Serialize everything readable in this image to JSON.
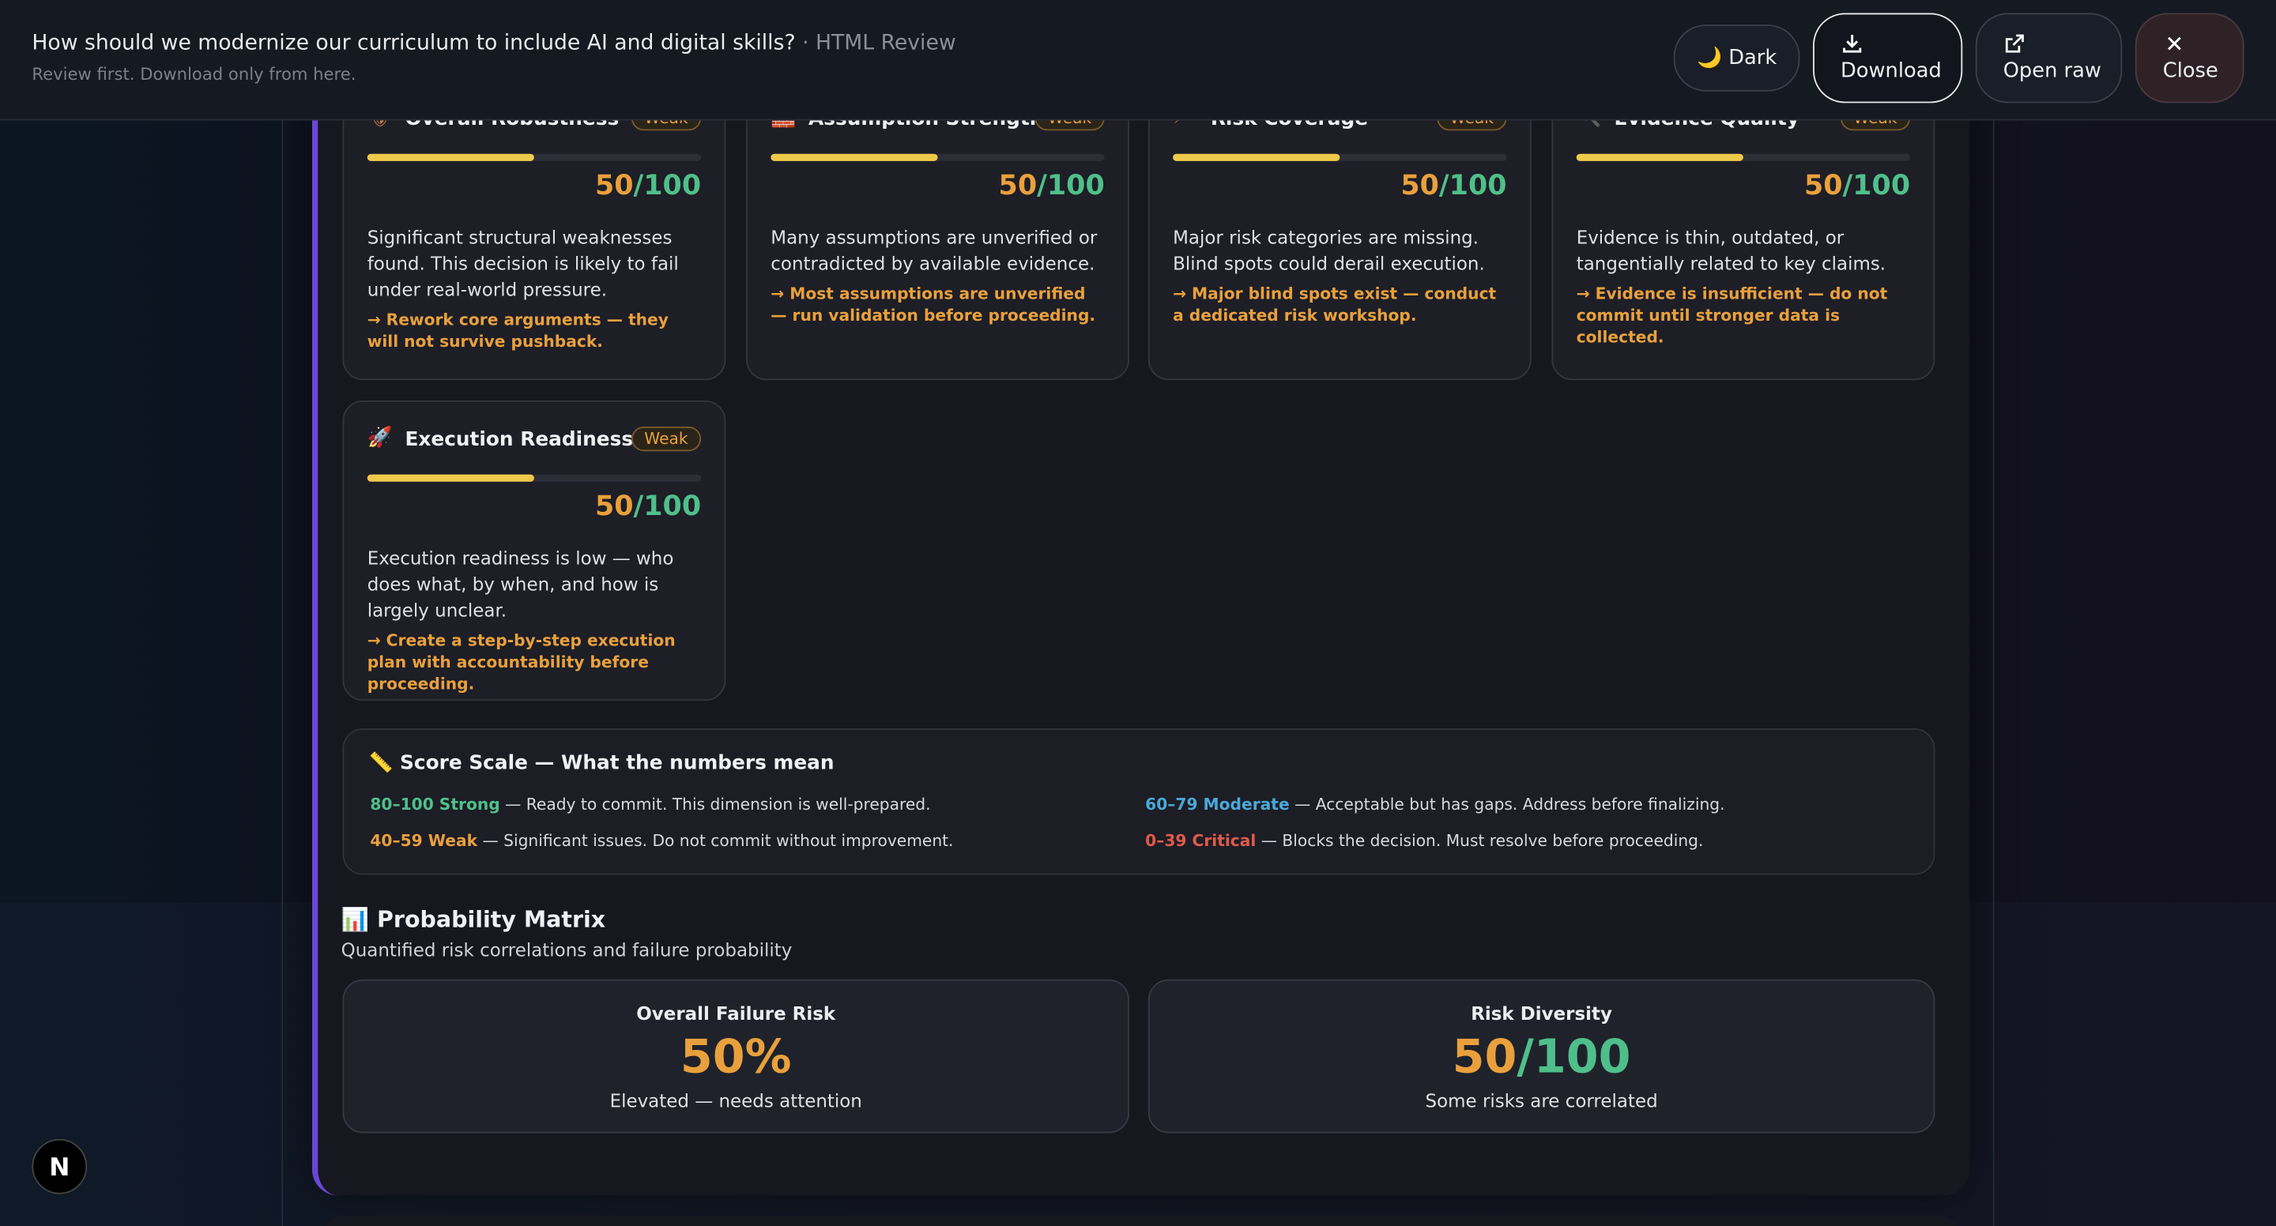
{
  "header": {
    "title": "How should we modernize our curriculum to include AI and digital skills?",
    "title_suffix": "· HTML Review",
    "subtitle": "Review first. Download only from here.",
    "buttons": {
      "dark": "🌙 Dark",
      "download": "Download",
      "open_raw": "Open raw",
      "close": "Close"
    }
  },
  "cards": [
    {
      "icon": "🛡",
      "title": "Overall Robustness",
      "badge": "Weak",
      "score": 50,
      "out_of": "/100",
      "description": "Significant structural weaknesses found. This decision is likely to fail under real-world pressure.",
      "action": "→ Rework core arguments — they will not survive pushback."
    },
    {
      "icon": "🧱",
      "title": "Assumption Strength",
      "badge": "Weak",
      "score": 50,
      "out_of": "/100",
      "description": "Many assumptions are unverified or contradicted by available evidence.",
      "action": "→ Most assumptions are unverified — run validation before proceeding."
    },
    {
      "icon": "⚡",
      "title": "Risk Coverage",
      "badge": "Weak",
      "score": 50,
      "out_of": "/100",
      "description": "Major risk categories are missing. Blind spots could derail execution.",
      "action": "→ Major blind spots exist — conduct a dedicated risk workshop."
    },
    {
      "icon": "🔍",
      "title": "Evidence Quality",
      "badge": "Weak",
      "score": 50,
      "out_of": "/100",
      "description": "Evidence is thin, outdated, or tangentially related to key claims.",
      "action": "→ Evidence is insufficient — do not commit until stronger data is collected."
    },
    {
      "icon": "🚀",
      "title": "Execution Readiness",
      "badge": "Weak",
      "score": 50,
      "out_of": "/100",
      "description": "Execution readiness is low — who does what, by when, and how is largely unclear.",
      "action": "→ Create a step-by-step execution plan with accountability before proceeding."
    }
  ],
  "score_scale": {
    "icon": "📏",
    "title": "Score Scale — What the numbers mean",
    "items": [
      {
        "label": "80–100 Strong",
        "text": "— Ready to commit. This dimension is well-prepared.",
        "color": "#4fbf8a"
      },
      {
        "label": "60–79 Moderate",
        "text": "— Acceptable but has gaps. Address before finalizing.",
        "color": "#4aa8d8"
      },
      {
        "label": "40–59 Weak",
        "text": "— Significant issues. Do not commit without improvement.",
        "color": "#e9a03c"
      },
      {
        "label": "0–39 Critical",
        "text": "— Blocks the decision. Must resolve before proceeding.",
        "color": "#e05a4a"
      }
    ]
  },
  "probability_matrix": {
    "icon": "📊",
    "title": "Probability Matrix",
    "subtitle": "Quantified risk correlations and failure probability",
    "boxes": [
      {
        "label": "Overall Failure Risk",
        "value": "50%",
        "note": "Elevated — needs attention"
      },
      {
        "label": "Risk Diversity",
        "value": "50",
        "out_of": "/100",
        "note": "Some risks are correlated"
      }
    ]
  },
  "badge": "N"
}
